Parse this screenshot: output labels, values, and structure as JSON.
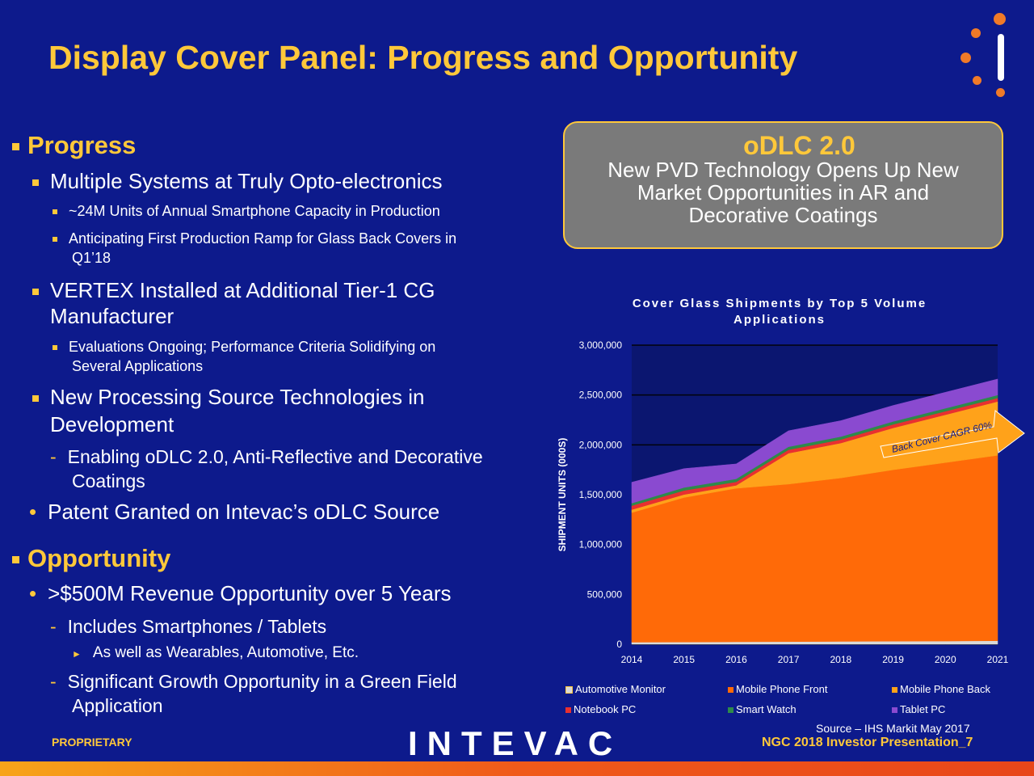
{
  "title": "Display Cover Panel: Progress and Opportunity",
  "left": {
    "progress_heading": "Progress",
    "items": [
      "Multiple Systems at Truly Opto-electronics",
      "~24M Units of Annual Smartphone Capacity in Production",
      "Anticipating First Production Ramp for Glass Back Covers in",
      "Q1’18",
      "VERTEX Installed at Additional Tier-1 CG",
      "Manufacturer",
      "Evaluations Ongoing; Performance Criteria Solidifying on",
      "Several Applications",
      "New Processing Source Technologies in",
      "Development",
      "Enabling oDLC 2.0, Anti-Reflective and Decorative",
      "Coatings",
      "Patent Granted on Intevac’s oDLC Source"
    ],
    "opportunity_heading": "Opportunity",
    "opp_items": [
      ">$500M Revenue Opportunity over 5 Years",
      "Includes Smartphones / Tablets",
      "As well as Wearables, Automotive, Etc.",
      "Significant Growth Opportunity in a Green Field",
      "Application"
    ]
  },
  "callout": {
    "heading": "oDLC 2.0",
    "line1": "New PVD Technology Opens Up New",
    "line2": "Market Opportunities in AR and",
    "line3": "Decorative Coatings"
  },
  "chart_data": {
    "type": "area",
    "stacked": true,
    "title_line1": "Cover Glass Shipments by Top 5 Volume",
    "title_line2": "Applications",
    "ylabel": "SHIPMENT UNITS (000S)",
    "x": [
      "2014",
      "2015",
      "2016",
      "2017",
      "2018",
      "2019",
      "2020",
      "2021"
    ],
    "ylim": [
      0,
      3000000
    ],
    "yticks": [
      "3,000,000",
      "2,500,000",
      "2,000,000",
      "1,500,000",
      "1,000,000",
      "500,000",
      "0"
    ],
    "series": [
      {
        "name": "Automotive Monitor",
        "color": "#d9d9d9",
        "values": [
          20000,
          22000,
          24000,
          26000,
          28000,
          30000,
          32000,
          35000
        ]
      },
      {
        "name": "Mobile Phone Front",
        "color": "#ff6a08",
        "values": [
          1300000,
          1450000,
          1540000,
          1580000,
          1640000,
          1720000,
          1790000,
          1860000
        ]
      },
      {
        "name": "Mobile Phone Back",
        "color": "#ffa21a",
        "values": [
          30000,
          30000,
          30000,
          310000,
          350000,
          420000,
          480000,
          540000
        ]
      },
      {
        "name": "Notebook PC",
        "color": "#e83030",
        "values": [
          40000,
          40000,
          35000,
          35000,
          35000,
          35000,
          35000,
          35000
        ]
      },
      {
        "name": "Smart Watch",
        "color": "#2e8a4a",
        "values": [
          25000,
          30000,
          30000,
          30000,
          30000,
          30000,
          30000,
          30000
        ]
      },
      {
        "name": "Tablet PC",
        "color": "#8a4ad0",
        "values": [
          210000,
          190000,
          150000,
          160000,
          160000,
          160000,
          160000,
          160000
        ]
      }
    ],
    "annotation": "Back Cover CAGR 60%",
    "grid": true
  },
  "legend_labels": [
    "Automotive Monitor",
    "Mobile Phone Front",
    "Mobile Phone Back",
    "Notebook PC",
    "Smart Watch",
    "Tablet PC"
  ],
  "footer": {
    "proprietary": "PROPRIETARY",
    "brand": "INTEVAC",
    "source": "Source – IHS Markit May 2017",
    "presentation": "NGC 2018 Investor Presentation_7"
  }
}
